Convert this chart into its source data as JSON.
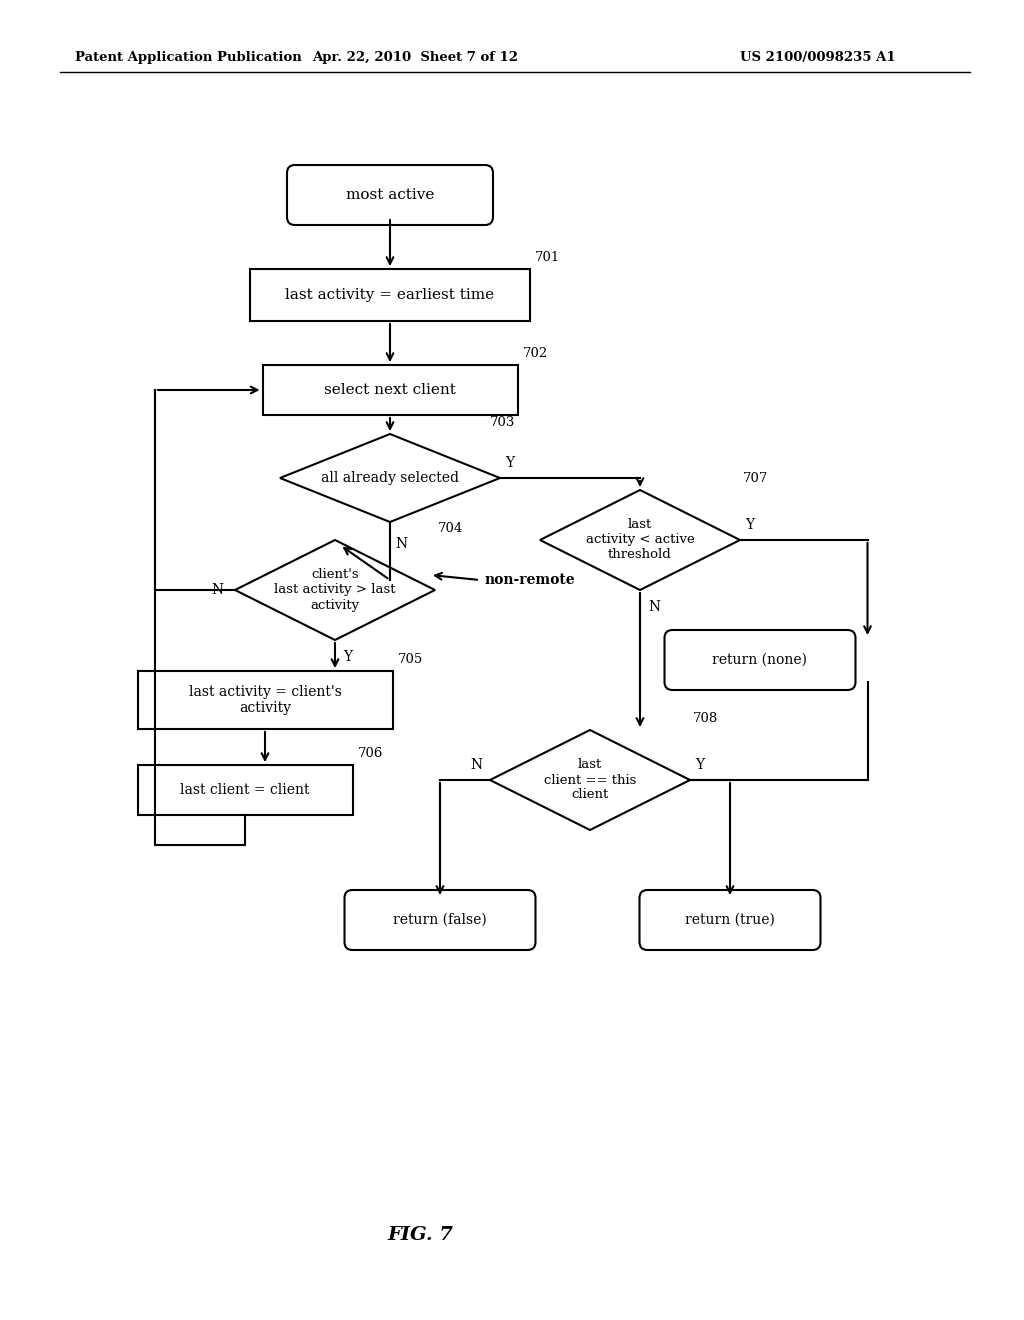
{
  "bg_color": "#ffffff",
  "header_left": "Patent Application Publication",
  "header_mid": "Apr. 22, 2010  Sheet 7 of 12",
  "header_right": "US 2100/0098235 A1",
  "figure_label": "FIG. 7"
}
